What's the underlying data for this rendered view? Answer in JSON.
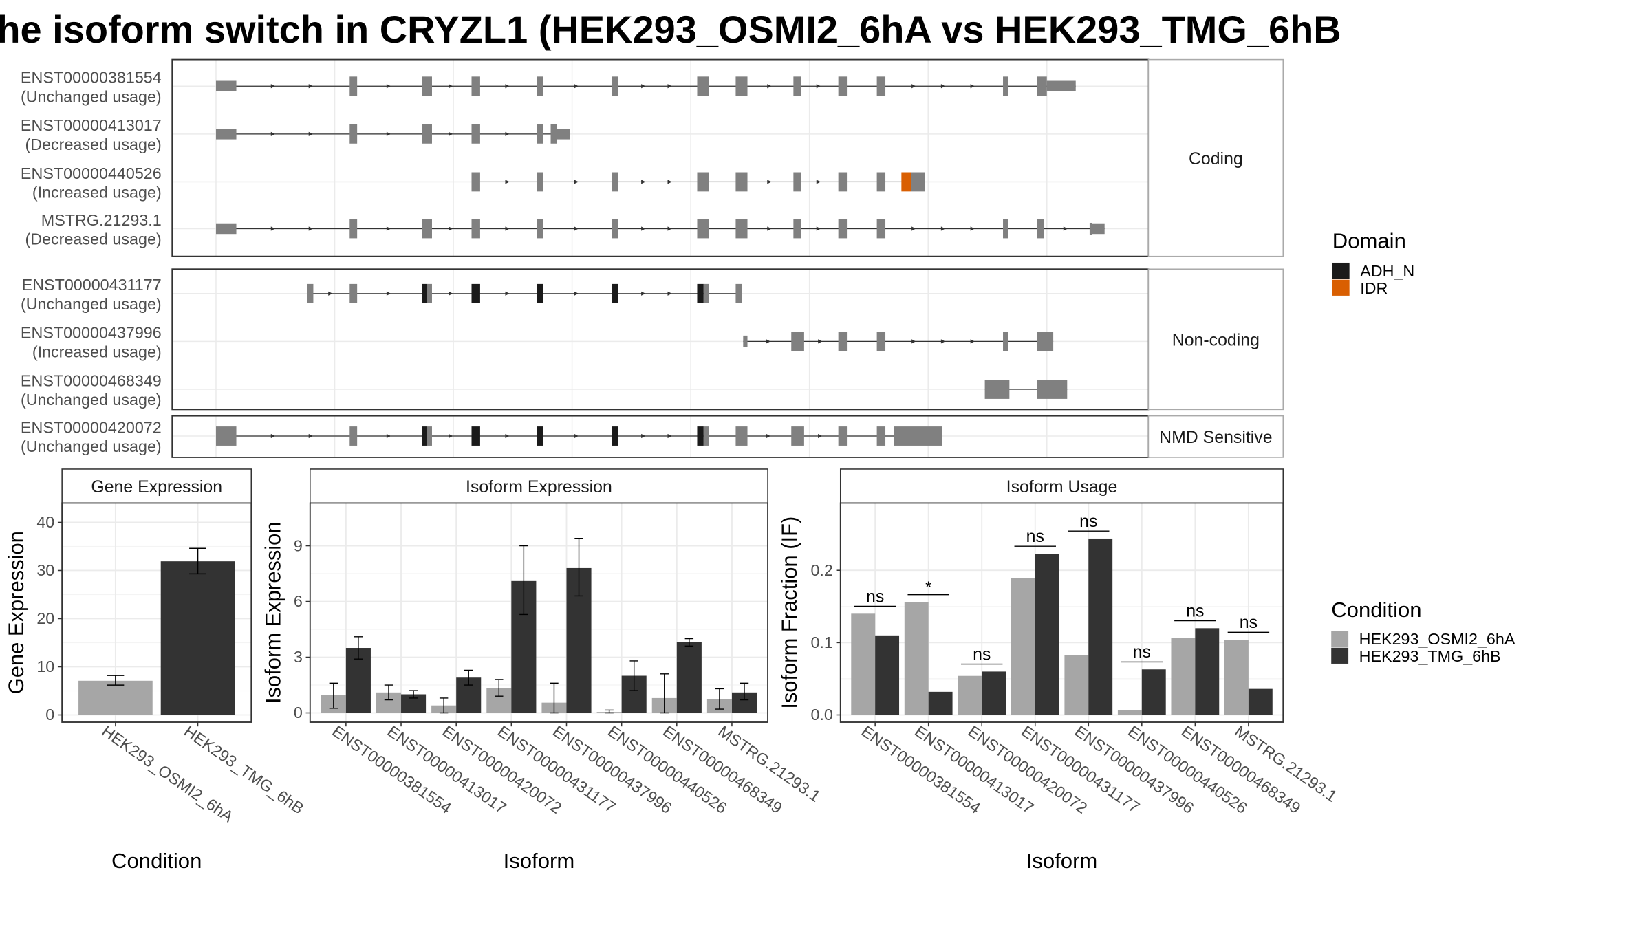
{
  "title": "he isoform switch in CRYZL1 (HEK293_OSMI2_6hA vs HEK293_TMG_6hB",
  "colors": {
    "exon": "#808080",
    "adh_n": "#1a1a1a",
    "idr": "#d95f02",
    "cond1": "#a6a6a6",
    "cond2": "#333333",
    "grid": "#ebebeb",
    "panel_border": "#333333"
  },
  "transcript_panel": {
    "facets": [
      {
        "label": "Coding",
        "transcripts": [
          {
            "id": "ENST00000381554",
            "usage": "(Unchanged usage)"
          },
          {
            "id": "ENST00000413017",
            "usage": "(Decreased usage)"
          },
          {
            "id": "ENST00000440526",
            "usage": "(Increased usage)"
          },
          {
            "id": "MSTRG.21293.1",
            "usage": "(Decreased usage)"
          }
        ]
      },
      {
        "label": "Non-coding",
        "transcripts": [
          {
            "id": "ENST00000431177",
            "usage": "(Unchanged usage)"
          },
          {
            "id": "ENST00000437996",
            "usage": "(Increased usage)"
          },
          {
            "id": "ENST00000468349",
            "usage": "(Unchanged usage)"
          }
        ]
      },
      {
        "label": "NMD Sensitive",
        "transcripts": [
          {
            "id": "ENST00000420072",
            "usage": "(Unchanged usage)"
          }
        ]
      }
    ],
    "domain_legend": {
      "title": "Domain",
      "items": [
        {
          "label": "ADH_N",
          "color": "#1a1a1a"
        },
        {
          "label": "IDR",
          "color": "#d95f02"
        }
      ]
    }
  },
  "condition_legend": {
    "title": "Condition",
    "items": [
      {
        "label": "HEK293_OSMI2_6hA",
        "color": "#a6a6a6"
      },
      {
        "label": "HEK293_TMG_6hB",
        "color": "#333333"
      }
    ]
  },
  "chart_data": [
    {
      "type": "bar",
      "title": "Gene Expression",
      "xlabel": "Condition",
      "ylabel": "Gene Expression",
      "ylim": [
        -1.5,
        44
      ],
      "yticks": [
        0,
        10,
        20,
        30,
        40
      ],
      "categories": [
        "HEK293_OSMI2_6hA",
        "HEK293_TMG_6hB"
      ],
      "values": [
        7.1,
        31.9
      ],
      "errors": [
        [
          6.2,
          8.2
        ],
        [
          29.3,
          34.6
        ]
      ],
      "colors": [
        "#a6a6a6",
        "#333333"
      ]
    },
    {
      "type": "bar",
      "title": "Isoform Expression",
      "xlabel": "Isoform",
      "ylabel": "Isoform Expression",
      "ylim": [
        -0.5,
        11.3
      ],
      "yticks": [
        0,
        3,
        6,
        9
      ],
      "categories": [
        "ENST00000381554",
        "ENST00000413017",
        "ENST00000420072",
        "ENST00000431177",
        "ENST00000437996",
        "ENST00000440526",
        "ENST00000468349",
        "MSTRG.21293.1"
      ],
      "series": [
        {
          "name": "HEK293_OSMI2_6hA",
          "values": [
            0.95,
            1.1,
            0.4,
            1.35,
            0.55,
            0.05,
            0.8,
            0.75
          ],
          "errors": [
            [
              0.25,
              1.6
            ],
            [
              0.7,
              1.5
            ],
            [
              0.0,
              0.8
            ],
            [
              0.9,
              1.8
            ],
            [
              0.0,
              1.6
            ],
            [
              0.0,
              0.15
            ],
            [
              0.0,
              2.1
            ],
            [
              0.2,
              1.3
            ]
          ]
        },
        {
          "name": "HEK293_TMG_6hB",
          "values": [
            3.5,
            1.0,
            1.9,
            7.1,
            7.8,
            2.0,
            3.8,
            1.1
          ],
          "errors": [
            [
              2.9,
              4.1
            ],
            [
              0.8,
              1.2
            ],
            [
              1.5,
              2.3
            ],
            [
              5.3,
              9.0
            ],
            [
              6.3,
              9.4
            ],
            [
              1.2,
              2.8
            ],
            [
              3.6,
              4.0
            ],
            [
              0.7,
              1.6
            ]
          ]
        }
      ]
    },
    {
      "type": "bar",
      "title": "Isoform Usage",
      "xlabel": "Isoform",
      "ylabel": "Isoform Fraction (IF)",
      "ylim": [
        -0.01,
        0.293
      ],
      "yticks": [
        0.0,
        0.1,
        0.2
      ],
      "categories": [
        "ENST00000381554",
        "ENST00000413017",
        "ENST00000420072",
        "ENST00000431177",
        "ENST00000437996",
        "ENST00000440526",
        "ENST00000468349",
        "MSTRG.21293.1"
      ],
      "series": [
        {
          "name": "HEK293_OSMI2_6hA",
          "values": [
            0.14,
            0.156,
            0.054,
            0.189,
            0.083,
            0.007,
            0.107,
            0.104
          ]
        },
        {
          "name": "HEK293_TMG_6hB",
          "values": [
            0.11,
            0.032,
            0.06,
            0.223,
            0.244,
            0.063,
            0.12,
            0.036
          ]
        }
      ],
      "significance": [
        "ns",
        "*",
        "ns",
        "ns",
        "ns",
        "ns",
        "ns",
        "ns"
      ]
    }
  ]
}
